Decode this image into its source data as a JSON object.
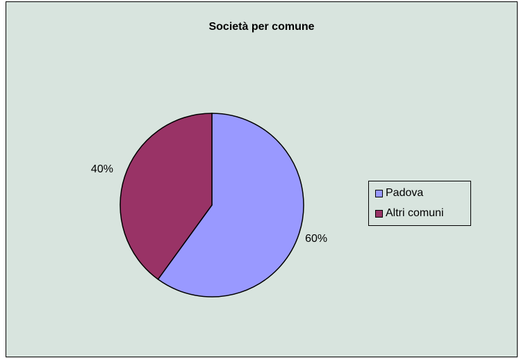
{
  "chart_data": {
    "type": "pie",
    "title": "Società per comune",
    "categories": [
      "Padova",
      "Altri comuni"
    ],
    "values": [
      60,
      40
    ],
    "data_labels": [
      "60%",
      "40%"
    ],
    "colors": [
      "#9999ff",
      "#993366"
    ],
    "legend": {
      "placement": "right",
      "entries": [
        "Padova",
        "Altri comuni"
      ]
    },
    "background_color": "#d8e4de",
    "start_angle_deg": 0,
    "direction": "clockwise"
  }
}
